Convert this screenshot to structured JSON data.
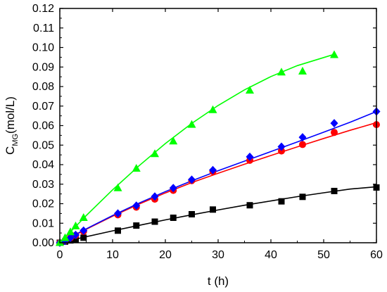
{
  "chart_data": {
    "type": "scatter",
    "xlabel": "t (h)",
    "ylabel": {
      "main": "C",
      "sub": "MG",
      "rest": "(mol/L)"
    },
    "xlim": [
      0,
      60
    ],
    "ylim": [
      0,
      0.12
    ],
    "x_ticks": [
      "0",
      "10",
      "20",
      "30",
      "40",
      "50",
      "60"
    ],
    "y_ticks": [
      "0.00",
      "0.01",
      "0.02",
      "0.03",
      "0.04",
      "0.05",
      "0.06",
      "0.07",
      "0.08",
      "0.09",
      "0.10",
      "0.11",
      "0.12"
    ],
    "grid": false,
    "series": [
      {
        "marker": "square",
        "color": "#000000",
        "points": [
          [
            0,
            0
          ],
          [
            1,
            0.0006
          ],
          [
            2,
            0.0012
          ],
          [
            3,
            0.0018
          ],
          [
            4.5,
            0.0026
          ],
          [
            11,
            0.0062
          ],
          [
            14.5,
            0.0088
          ],
          [
            18,
            0.0108
          ],
          [
            21.5,
            0.0128
          ],
          [
            25,
            0.0146
          ],
          [
            29,
            0.017
          ],
          [
            36,
            0.0192
          ],
          [
            42,
            0.0212
          ],
          [
            46,
            0.0235
          ],
          [
            52,
            0.0265
          ],
          [
            60,
            0.0283
          ]
        ],
        "fit": [
          [
            0,
            0
          ],
          [
            5,
            0.0031
          ],
          [
            10,
            0.0061
          ],
          [
            15,
            0.0089
          ],
          [
            20,
            0.0117
          ],
          [
            25,
            0.0143
          ],
          [
            30,
            0.0168
          ],
          [
            35,
            0.0192
          ],
          [
            40,
            0.0214
          ],
          [
            45,
            0.0236
          ],
          [
            50,
            0.0256
          ],
          [
            55,
            0.0275
          ],
          [
            60,
            0.0287
          ]
        ]
      },
      {
        "marker": "circle",
        "color": "#ff0000",
        "points": [
          [
            0,
            0
          ],
          [
            1,
            0.001
          ],
          [
            2,
            0.0025
          ],
          [
            3,
            0.0038
          ],
          [
            4.5,
            0.0058
          ],
          [
            11,
            0.0143
          ],
          [
            14.5,
            0.0182
          ],
          [
            18,
            0.0223
          ],
          [
            21.5,
            0.0268
          ],
          [
            25,
            0.0318
          ],
          [
            29,
            0.0365
          ],
          [
            36,
            0.0422
          ],
          [
            42,
            0.047
          ],
          [
            46,
            0.0503
          ],
          [
            52,
            0.0565
          ],
          [
            60,
            0.0605
          ]
        ],
        "fit": [
          [
            0,
            0
          ],
          [
            5,
            0.0069
          ],
          [
            10,
            0.0136
          ],
          [
            15,
            0.0198
          ],
          [
            20,
            0.0255
          ],
          [
            25,
            0.0308
          ],
          [
            30,
            0.0356
          ],
          [
            35,
            0.0402
          ],
          [
            40,
            0.0447
          ],
          [
            45,
            0.0491
          ],
          [
            50,
            0.0534
          ],
          [
            55,
            0.0576
          ],
          [
            60,
            0.0615
          ]
        ]
      },
      {
        "marker": "diamond",
        "color": "#0000ff",
        "points": [
          [
            0,
            0
          ],
          [
            1,
            0.001
          ],
          [
            2,
            0.0025
          ],
          [
            3,
            0.004
          ],
          [
            4.5,
            0.0062
          ],
          [
            11,
            0.015
          ],
          [
            14.5,
            0.019
          ],
          [
            18,
            0.0237
          ],
          [
            21.5,
            0.028
          ],
          [
            25,
            0.0323
          ],
          [
            29,
            0.0372
          ],
          [
            36,
            0.044
          ],
          [
            42,
            0.0492
          ],
          [
            46,
            0.054
          ],
          [
            52,
            0.0612
          ],
          [
            60,
            0.0672
          ]
        ],
        "fit": [
          [
            0,
            0
          ],
          [
            5,
            0.0071
          ],
          [
            10,
            0.0139
          ],
          [
            15,
            0.0203
          ],
          [
            20,
            0.0262
          ],
          [
            25,
            0.0317
          ],
          [
            30,
            0.0369
          ],
          [
            35,
            0.0418
          ],
          [
            40,
            0.0467
          ],
          [
            45,
            0.0516
          ],
          [
            50,
            0.0566
          ],
          [
            55,
            0.0617
          ],
          [
            60,
            0.0672
          ]
        ]
      },
      {
        "marker": "triangle",
        "color": "#00ff00",
        "points": [
          [
            0,
            0
          ],
          [
            1,
            0.0025
          ],
          [
            2,
            0.0055
          ],
          [
            3,
            0.0085
          ],
          [
            4.5,
            0.0128
          ],
          [
            11,
            0.028
          ],
          [
            14.5,
            0.038
          ],
          [
            18,
            0.0455
          ],
          [
            21.5,
            0.052
          ],
          [
            25,
            0.0605
          ],
          [
            29,
            0.068
          ],
          [
            36,
            0.078
          ],
          [
            42,
            0.0873
          ],
          [
            46,
            0.0878
          ],
          [
            52,
            0.0962
          ]
        ],
        "fit": [
          [
            0,
            0
          ],
          [
            5,
            0.0139
          ],
          [
            10,
            0.0271
          ],
          [
            15,
            0.0394
          ],
          [
            20,
            0.0508
          ],
          [
            25,
            0.0611
          ],
          [
            30,
            0.0703
          ],
          [
            35,
            0.0783
          ],
          [
            40,
            0.0851
          ],
          [
            45,
            0.0907
          ],
          [
            52,
            0.0965
          ]
        ]
      }
    ]
  }
}
